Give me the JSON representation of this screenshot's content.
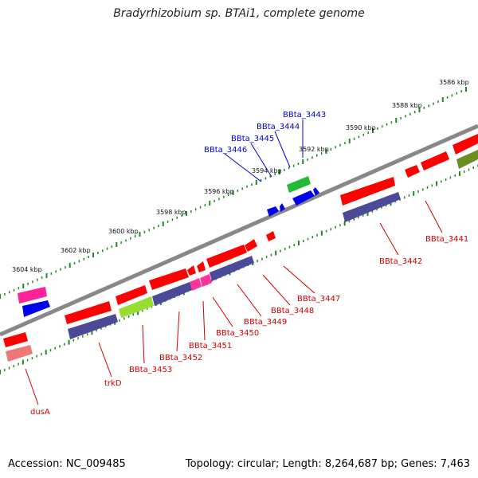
{
  "title": "Bradyrhizobium sp. BTAi1, complete genome",
  "footer": {
    "accession": "Accession: NC_009485",
    "topology": "Topology: circular; Length: 8,264,687 bp; Genes: 7,463"
  },
  "colors": {
    "forward_red": "#ff0000",
    "reverse_purple": "#4a4a99",
    "blue": "#0000ff",
    "green": "#22bb33",
    "magenta": "#ff3399",
    "olive": "#6b8e23",
    "tick_green": "#228822",
    "backbone": "#888888"
  },
  "kbp_labels": [
    "3586 kbp",
    "3588 kbp",
    "3590 kbp",
    "3592 kbp",
    "3594 kbp",
    "3596 kbp",
    "3598 kbp",
    "3600 kbp",
    "3602 kbp",
    "3604 kbp"
  ],
  "gene_labels_top": [
    "BBta_3443",
    "BBta_3444",
    "BBta_3445",
    "BBta_3446"
  ],
  "gene_labels_bottom": [
    "BBta_3441",
    "BBta_3442",
    "BBta_3447",
    "BBta_3448",
    "BBta_3449",
    "BBta_3450",
    "BBta_3451",
    "BBta_3452",
    "BBta_3453",
    "trkD",
    "dusA"
  ]
}
